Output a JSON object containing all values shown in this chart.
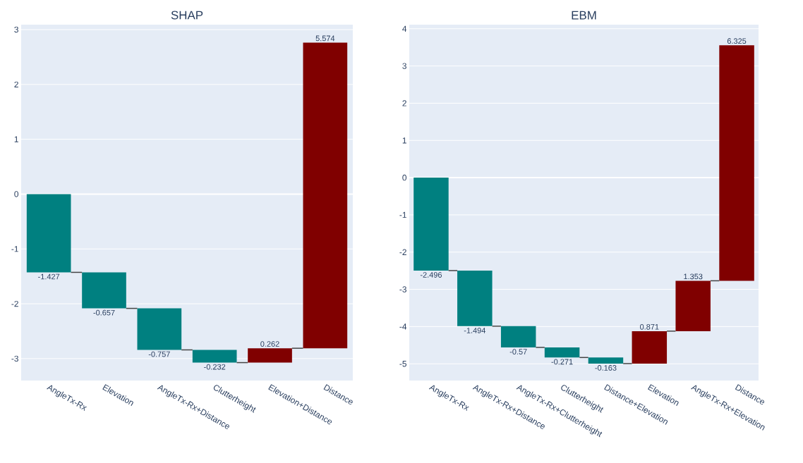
{
  "chart_data": [
    {
      "type": "bar",
      "title": "SHAP",
      "categories": [
        "AngleTx-Rx",
        "Elevation",
        "AngleTx-Rx+Distance",
        "Clutterheight",
        "Elevation+Distance",
        "Distance"
      ],
      "values": [
        -1.427,
        -0.657,
        -0.757,
        -0.232,
        0.262,
        5.574
      ],
      "base": [
        0,
        -1.427,
        -2.084,
        -2.841,
        -3.073,
        -2.811
      ],
      "colors": [
        "#008080",
        "#008080",
        "#008080",
        "#008080",
        "#800000",
        "#800000"
      ],
      "ylim": [
        -3.4,
        3.09
      ],
      "yticks": [
        -3,
        -2,
        -1,
        0,
        1,
        2,
        3
      ],
      "grid": "y",
      "data_labels": true
    },
    {
      "type": "bar",
      "title": "EBM",
      "categories": [
        "AngleTx-Rx",
        "AngleTx-Rx+Distance",
        "AngleTx-Rx+Clutterheight",
        "Clutterheight",
        "Distance+Elevation",
        "Elevation",
        "AngleTx-Rx+Elevation",
        "Distance"
      ],
      "values": [
        -2.496,
        -1.494,
        -0.57,
        -0.271,
        -0.163,
        0.871,
        1.353,
        6.325
      ],
      "base": [
        0,
        -2.496,
        -3.99,
        -4.56,
        -4.831,
        -4.994,
        -4.123,
        -2.77
      ],
      "colors": [
        "#008080",
        "#008080",
        "#008080",
        "#008080",
        "#008080",
        "#800000",
        "#800000",
        "#800000"
      ],
      "ylim": [
        -5.45,
        4.11
      ],
      "yticks": [
        -5,
        -4,
        -3,
        -2,
        -1,
        0,
        1,
        2,
        3,
        4
      ],
      "grid": "y",
      "data_labels": true
    }
  ]
}
